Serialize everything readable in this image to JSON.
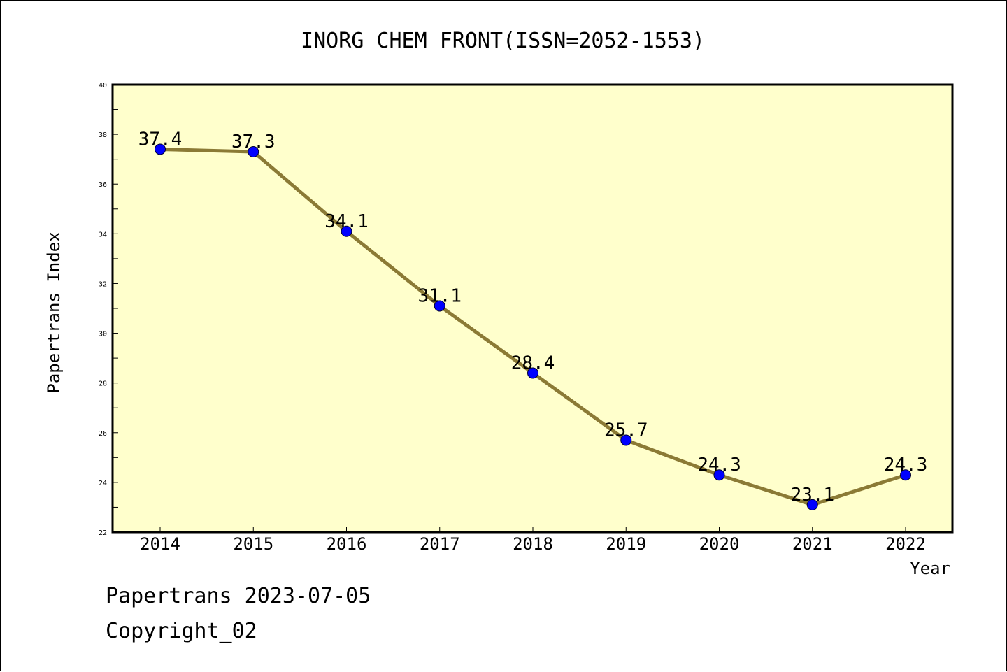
{
  "chart_data": {
    "type": "line",
    "title": "INORG CHEM FRONT(ISSN=2052-1553)",
    "xlabel": "Year",
    "ylabel": "Papertrans Index",
    "categories": [
      "2014",
      "2015",
      "2016",
      "2017",
      "2018",
      "2019",
      "2020",
      "2021",
      "2022"
    ],
    "series": [
      {
        "values": [
          37.4,
          37.3,
          34.1,
          31.1,
          28.4,
          25.7,
          24.3,
          23.1,
          24.3
        ]
      }
    ],
    "data_labels": [
      "37.4",
      "37.3",
      "34.1",
      "31.1",
      "28.4",
      "25.7",
      "24.3",
      "23.1",
      "24.3"
    ],
    "ylim": [
      22,
      40
    ],
    "yticks": [
      "22",
      "24",
      "26",
      "28",
      "30",
      "32",
      "34",
      "36",
      "38",
      "40"
    ],
    "grid": false,
    "colors": {
      "plot_background": "#ffffcc",
      "line": "#8b7a35",
      "marker": "#0000ff"
    }
  },
  "footer": {
    "line1": "Papertrans 2023-07-05",
    "line2": "Copyright_02"
  }
}
